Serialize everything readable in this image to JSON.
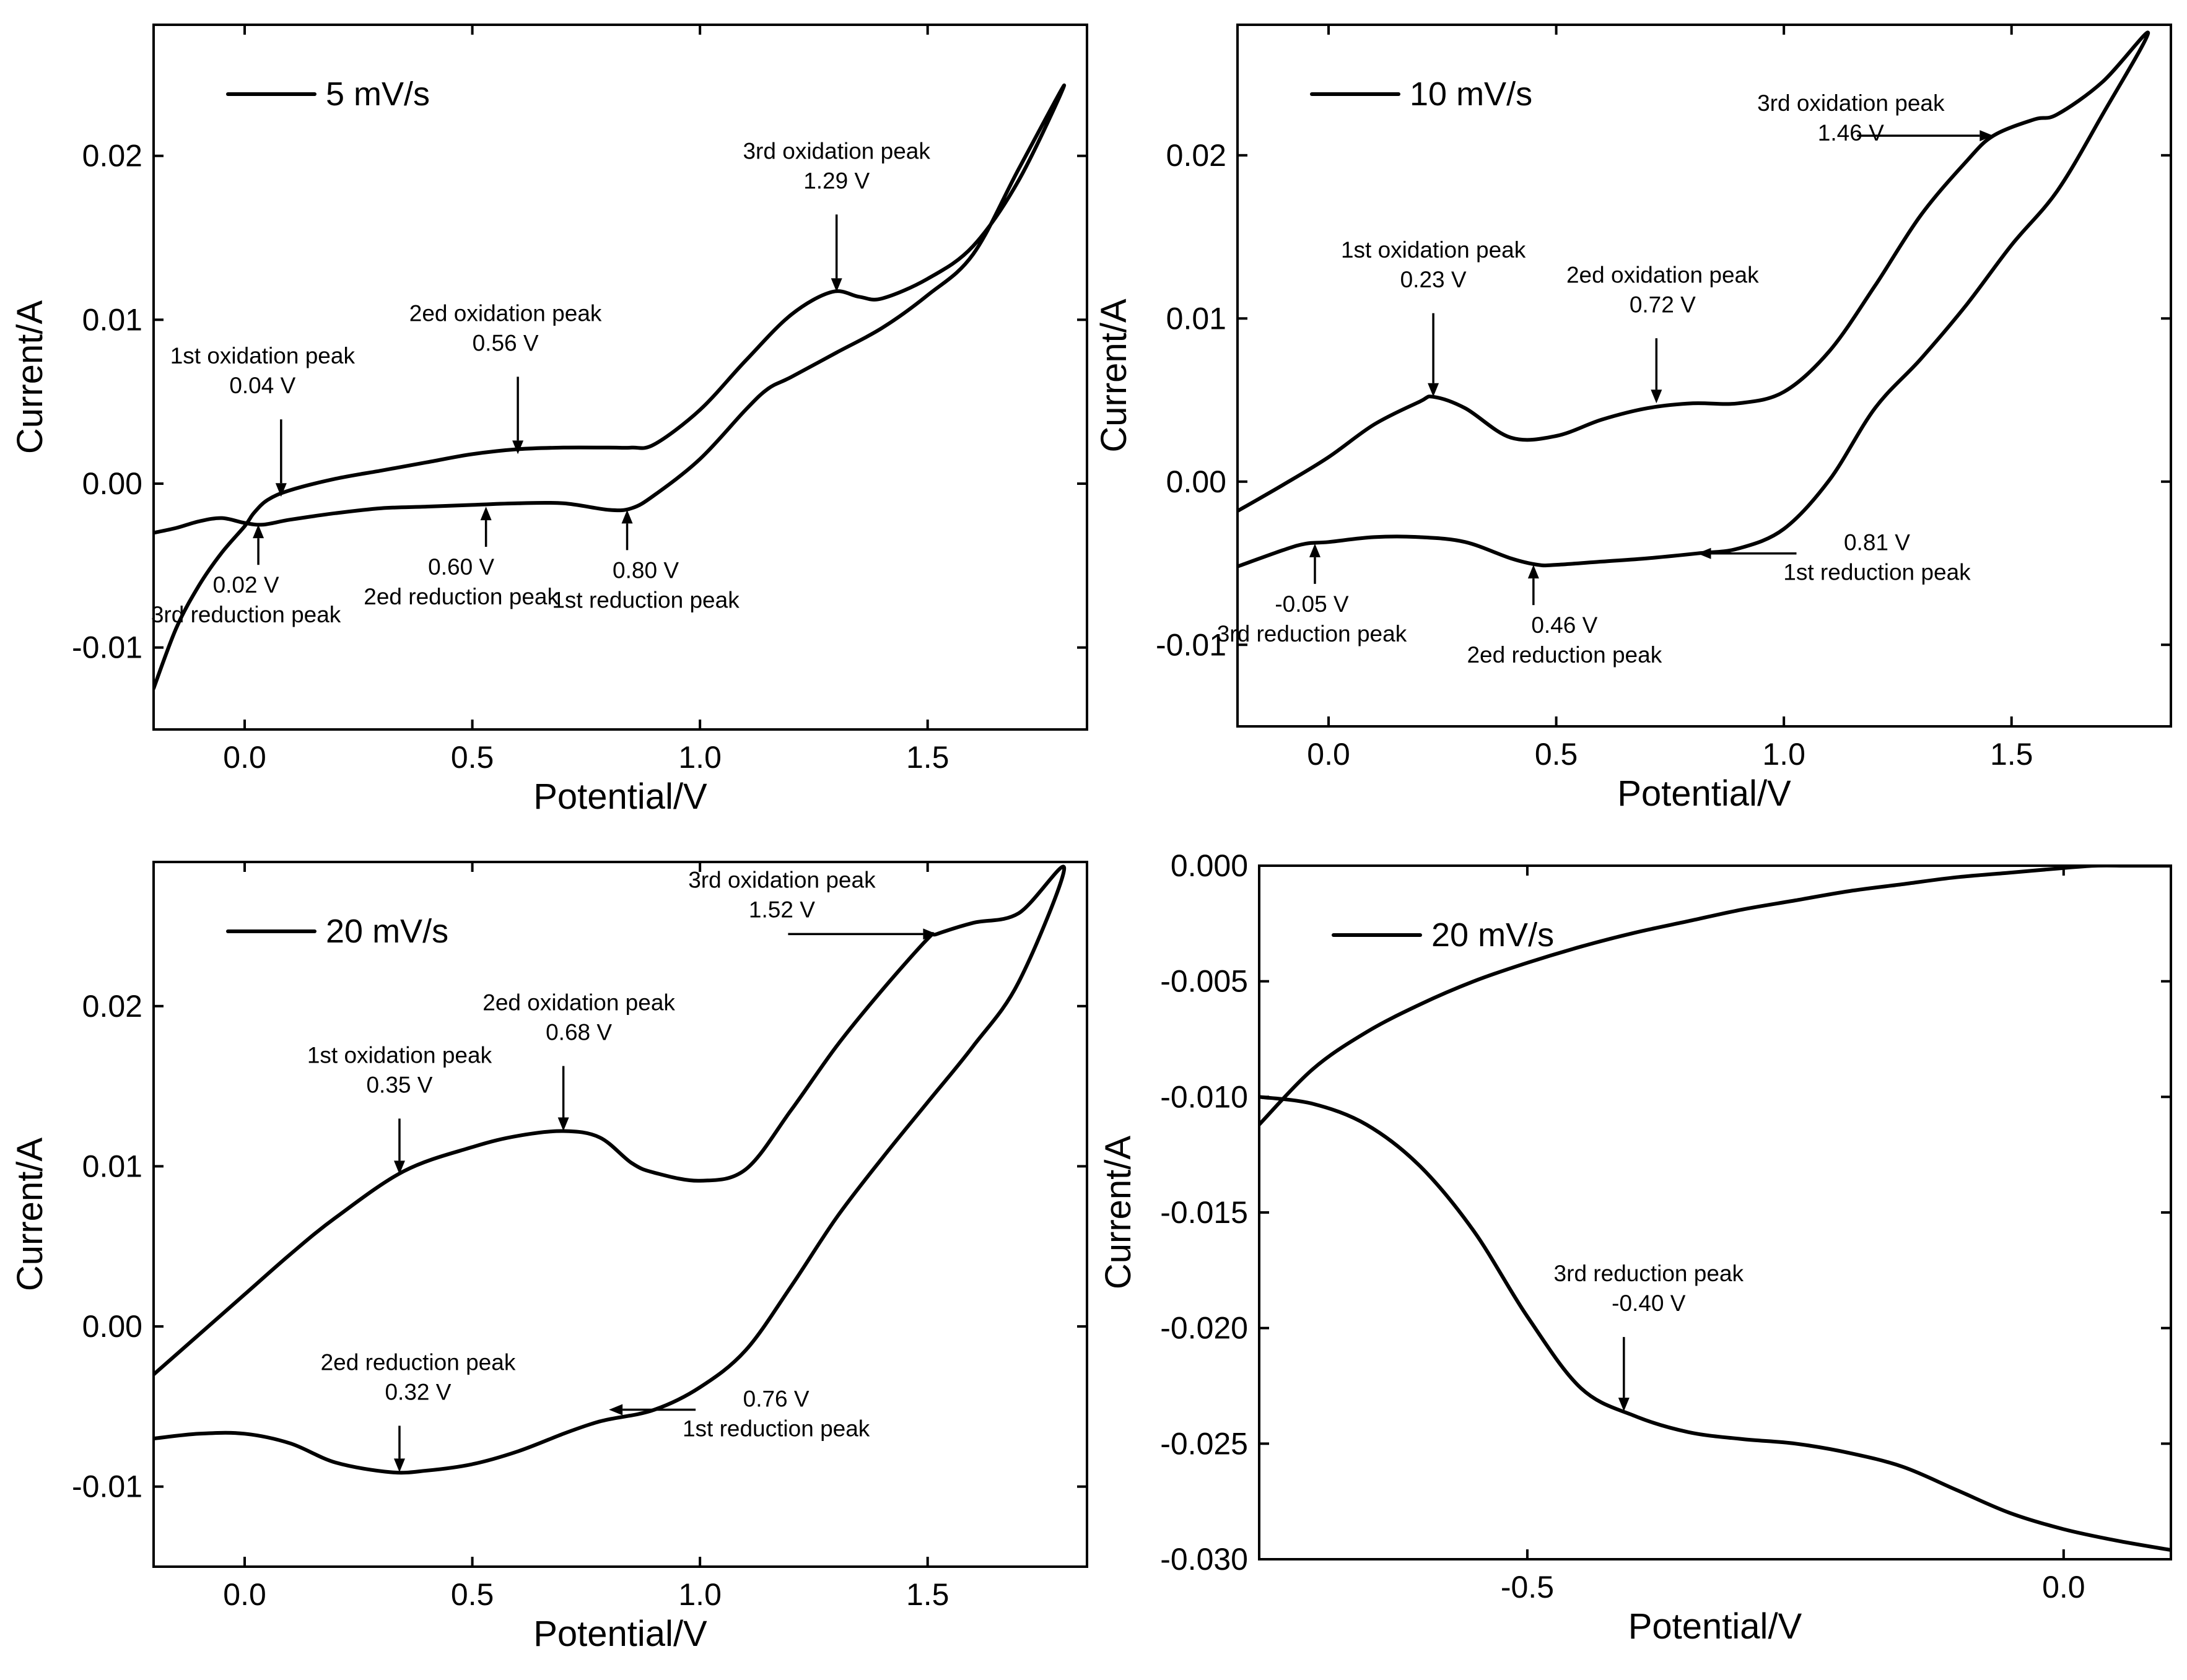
{
  "chart_data": [
    {
      "type": "line",
      "xlabel": "Potential/V",
      "ylabel": "Current/A",
      "xlim": [
        -0.2,
        1.85
      ],
      "ylim": [
        -0.015,
        0.028
      ],
      "xticks": [
        0.0,
        0.5,
        1.0,
        1.5
      ],
      "xtick_labels": [
        "0.0",
        "0.5",
        "1.0",
        "1.5"
      ],
      "yticks": [
        -0.01,
        0.0,
        0.01,
        0.02
      ],
      "ytick_labels": [
        "-0.01",
        "0.00",
        "0.01",
        "0.02"
      ],
      "legend": "5 mV/s",
      "legend_position": "top-left",
      "series": [
        {
          "name": "5 mV/s",
          "x": [
            -0.2,
            -0.15,
            -0.1,
            -0.05,
            0.0,
            0.02,
            0.05,
            0.1,
            0.2,
            0.3,
            0.4,
            0.5,
            0.6,
            0.7,
            0.8,
            0.85,
            0.9,
            1.0,
            1.1,
            1.2,
            1.29,
            1.35,
            1.4,
            1.5,
            1.6,
            1.7,
            1.8,
            1.7,
            1.6,
            1.5,
            1.4,
            1.3,
            1.2,
            1.15,
            1.1,
            1.0,
            0.9,
            0.85,
            0.8,
            0.7,
            0.6,
            0.5,
            0.4,
            0.3,
            0.2,
            0.1,
            0.04,
            0.0,
            -0.05,
            -0.1,
            -0.15,
            -0.2
          ],
          "y": [
            -0.0125,
            -0.0088,
            -0.0062,
            -0.0042,
            -0.0026,
            -0.0018,
            -0.001,
            -0.0004,
            0.0003,
            0.0008,
            0.0013,
            0.0018,
            0.0021,
            0.0022,
            0.0022,
            0.0022,
            0.0024,
            0.0045,
            0.0075,
            0.0103,
            0.0117,
            0.0114,
            0.0113,
            0.0125,
            0.0145,
            0.0185,
            0.0243,
            0.0192,
            0.014,
            0.0115,
            0.0095,
            0.008,
            0.0065,
            0.0058,
            0.0045,
            0.0015,
            -0.0007,
            -0.0015,
            -0.0016,
            -0.0012,
            -0.0012,
            -0.0013,
            -0.0014,
            -0.0015,
            -0.0018,
            -0.0022,
            -0.0025,
            -0.0024,
            -0.0021,
            -0.0023,
            -0.0027,
            -0.003
          ]
        }
      ],
      "annotations": [
        {
          "lines": [
            "1st oxidation peak",
            "0.04 V"
          ],
          "x": 0.08,
          "y": -0.0008,
          "dir": "down"
        },
        {
          "lines": [
            "2ed oxidation peak",
            "0.56 V"
          ],
          "x": 0.6,
          "y": 0.0018,
          "dir": "down"
        },
        {
          "lines": [
            "3rd oxidation peak",
            "1.29 V"
          ],
          "x": 1.3,
          "y": 0.0117,
          "dir": "down"
        },
        {
          "lines": [
            "0.02 V",
            "3rd reduction peak"
          ],
          "x": 0.03,
          "y": -0.0025,
          "dir": "up"
        },
        {
          "lines": [
            "0.60 V",
            "2ed reduction peak"
          ],
          "x": 0.53,
          "y": -0.0014,
          "dir": "up"
        },
        {
          "lines": [
            "0.80 V",
            "1st reduction peak"
          ],
          "x": 0.84,
          "y": -0.0016,
          "dir": "up"
        }
      ]
    },
    {
      "type": "line",
      "xlabel": "Potential/V",
      "ylabel": "Current/A",
      "xlim": [
        -0.2,
        1.85
      ],
      "ylim": [
        -0.015,
        0.028
      ],
      "xticks": [
        0.0,
        0.5,
        1.0,
        1.5
      ],
      "xtick_labels": [
        "0.0",
        "0.5",
        "1.0",
        "1.5"
      ],
      "yticks": [
        -0.01,
        0.0,
        0.01,
        0.02
      ],
      "ytick_labels": [
        "-0.01",
        "0.00",
        "0.01",
        "0.02"
      ],
      "legend": "10 mV/s",
      "legend_position": "top-left",
      "series": [
        {
          "name": "10 mV/s",
          "x": [
            -0.2,
            -0.1,
            0.0,
            0.1,
            0.2,
            0.23,
            0.3,
            0.4,
            0.5,
            0.6,
            0.7,
            0.8,
            0.9,
            1.0,
            1.1,
            1.2,
            1.3,
            1.4,
            1.46,
            1.55,
            1.6,
            1.7,
            1.8,
            1.7,
            1.6,
            1.5,
            1.4,
            1.3,
            1.2,
            1.1,
            1.0,
            0.9,
            0.81,
            0.7,
            0.6,
            0.5,
            0.46,
            0.4,
            0.3,
            0.2,
            0.1,
            0.0,
            -0.05,
            -0.1,
            -0.2
          ],
          "y": [
            -0.0018,
            -0.0002,
            0.0015,
            0.0035,
            0.0049,
            0.0052,
            0.0045,
            0.0027,
            0.0028,
            0.0038,
            0.0045,
            0.0048,
            0.0048,
            0.0055,
            0.008,
            0.012,
            0.0163,
            0.0196,
            0.0212,
            0.0222,
            0.0225,
            0.0245,
            0.0275,
            0.0225,
            0.0178,
            0.0145,
            0.0108,
            0.0075,
            0.0045,
            0.0001,
            -0.0029,
            -0.0041,
            -0.0044,
            -0.0047,
            -0.0049,
            -0.0051,
            -0.0051,
            -0.0047,
            -0.0037,
            -0.0034,
            -0.0034,
            -0.0037,
            -0.0038,
            -0.0042,
            -0.0052
          ]
        }
      ],
      "annotations": [
        {
          "lines": [
            "1st oxidation peak",
            "0.23 V"
          ],
          "x": 0.23,
          "y": 0.0052,
          "dir": "down"
        },
        {
          "lines": [
            "2ed oxidation peak",
            "0.72 V"
          ],
          "x": 0.72,
          "y": 0.0048,
          "dir": "down"
        },
        {
          "lines": [
            "3rd oxidation peak",
            "1.46 V"
          ],
          "x": 1.46,
          "y": 0.0212,
          "dir": "right"
        },
        {
          "lines": [
            "-0.05 V",
            "3rd reduction peak"
          ],
          "x": -0.03,
          "y": -0.0038,
          "dir": "up"
        },
        {
          "lines": [
            "0.46 V",
            "2ed reduction peak"
          ],
          "x": 0.45,
          "y": -0.0051,
          "dir": "up"
        },
        {
          "lines": [
            "0.81 V",
            "1st reduction peak"
          ],
          "x": 0.81,
          "y": -0.0044,
          "dir": "left"
        }
      ]
    },
    {
      "type": "line",
      "xlabel": "Potential/V",
      "ylabel": "Current/A",
      "xlim": [
        -0.2,
        1.85
      ],
      "ylim": [
        -0.015,
        0.029
      ],
      "xticks": [
        0.0,
        0.5,
        1.0,
        1.5
      ],
      "xtick_labels": [
        "0.0",
        "0.5",
        "1.0",
        "1.5"
      ],
      "yticks": [
        -0.01,
        0.0,
        0.01,
        0.02
      ],
      "ytick_labels": [
        "-0.01",
        "0.00",
        "0.01",
        "0.02"
      ],
      "legend": "20 mV/s",
      "legend_position": "top-left",
      "series": [
        {
          "name": "20 mV/s",
          "x": [
            -0.2,
            -0.1,
            0.0,
            0.1,
            0.2,
            0.35,
            0.5,
            0.6,
            0.7,
            0.78,
            0.85,
            0.9,
            1.0,
            1.1,
            1.2,
            1.3,
            1.4,
            1.5,
            1.52,
            1.6,
            1.7,
            1.8,
            1.7,
            1.6,
            1.5,
            1.4,
            1.3,
            1.2,
            1.1,
            1.0,
            0.9,
            0.8,
            0.76,
            0.7,
            0.6,
            0.5,
            0.4,
            0.32,
            0.2,
            0.1,
            0.0,
            -0.1,
            -0.2
          ],
          "y": [
            -0.003,
            -0.0005,
            0.002,
            0.0045,
            0.0068,
            0.0097,
            0.0112,
            0.0119,
            0.0122,
            0.0118,
            0.0102,
            0.0096,
            0.0091,
            0.0098,
            0.0135,
            0.0175,
            0.021,
            0.0242,
            0.0245,
            0.0252,
            0.0258,
            0.0286,
            0.0215,
            0.0175,
            0.014,
            0.0105,
            0.0068,
            0.0025,
            -0.0015,
            -0.0038,
            -0.0052,
            -0.0058,
            -0.0061,
            -0.0067,
            -0.0078,
            -0.0086,
            -0.009,
            -0.0091,
            -0.0085,
            -0.0073,
            -0.0067,
            -0.0067,
            -0.007
          ]
        }
      ],
      "annotations": [
        {
          "lines": [
            "1st oxidation peak",
            "0.35 V"
          ],
          "x": 0.34,
          "y": 0.0095,
          "dir": "down"
        },
        {
          "lines": [
            "2ed oxidation peak",
            "0.68 V"
          ],
          "x": 0.7,
          "y": 0.0122,
          "dir": "down"
        },
        {
          "lines": [
            "3rd oxidation peak",
            "1.52 V"
          ],
          "x": 1.52,
          "y": 0.0245,
          "dir": "right"
        },
        {
          "lines": [
            "2ed reduction peak",
            "0.32 V"
          ],
          "x": 0.34,
          "y": -0.0091,
          "dir": "down"
        },
        {
          "lines": [
            "0.76 V",
            "1st reduction peak"
          ],
          "x": 0.8,
          "y": -0.0052,
          "dir": "left"
        }
      ]
    },
    {
      "type": "line",
      "xlabel": "Potential/V",
      "ylabel": "Current/A",
      "xlim": [
        -0.75,
        0.1
      ],
      "ylim": [
        -0.03,
        0.0
      ],
      "xticks": [
        -0.5,
        0.0
      ],
      "xtick_labels": [
        "-0.5",
        "0.0"
      ],
      "yticks": [
        0.0,
        -0.005,
        -0.01,
        -0.015,
        -0.02,
        -0.025,
        -0.03
      ],
      "ytick_labels": [
        "0.000",
        "-0.005",
        "-0.010",
        "-0.015",
        "-0.020",
        "-0.025",
        "-0.030"
      ],
      "legend": "20 mV/s",
      "legend_position": "top-left",
      "series": [
        {
          "name": "20 mV/s",
          "x": [
            -0.75,
            -0.7,
            -0.65,
            -0.6,
            -0.55,
            -0.5,
            -0.45,
            -0.4,
            -0.35,
            -0.3,
            -0.25,
            -0.2,
            -0.15,
            -0.1,
            -0.05,
            0.0,
            0.03,
            0.06,
            0.1
          ],
          "y": [
            -0.0112,
            -0.0088,
            -0.0072,
            -0.006,
            -0.005,
            -0.0042,
            -0.0035,
            -0.0029,
            -0.0024,
            -0.0019,
            -0.0015,
            -0.0011,
            -0.0008,
            -0.0005,
            -0.0003,
            -0.0001,
            0.0,
            0.0,
            0.0
          ]
        },
        {
          "name": "20 mV/s",
          "x": [
            -0.75,
            -0.7,
            -0.65,
            -0.6,
            -0.55,
            -0.5,
            -0.45,
            -0.4,
            -0.35,
            -0.3,
            -0.25,
            -0.2,
            -0.15,
            -0.1,
            -0.05,
            0.0,
            0.05,
            0.1
          ],
          "y": [
            -0.01,
            -0.0103,
            -0.0112,
            -0.013,
            -0.0158,
            -0.0195,
            -0.0226,
            -0.0238,
            -0.0245,
            -0.0248,
            -0.025,
            -0.0254,
            -0.026,
            -0.027,
            -0.028,
            -0.0287,
            -0.0292,
            -0.0296
          ]
        }
      ],
      "annotations": [
        {
          "lines": [
            "3rd reduction peak",
            "-0.40 V"
          ],
          "x": -0.41,
          "y": -0.0236,
          "dir": "down"
        }
      ]
    }
  ]
}
